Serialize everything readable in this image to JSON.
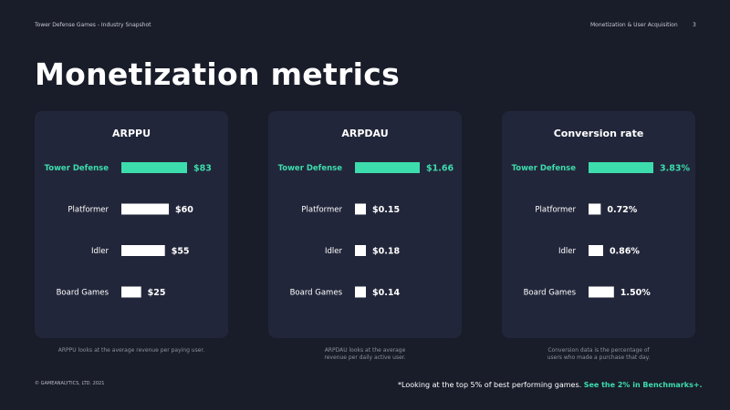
{
  "header": {
    "left": "Tower Defense Games - Industry Snapshot",
    "right": "Monetization & User Acquisition",
    "page": "3"
  },
  "title": "Monetization metrics",
  "colors": {
    "highlight": "#3ddcac",
    "bar": "#ffffff",
    "panel": "#22263a",
    "background": "#191c29"
  },
  "chart_data": [
    {
      "type": "bar",
      "orientation": "horizontal",
      "title": "ARPPU",
      "categories": [
        "Tower Defense",
        "Platformer",
        "Idler",
        "Board Games"
      ],
      "values": [
        83,
        60,
        55,
        25
      ],
      "labels": [
        "$83",
        "$60",
        "$55",
        "$25"
      ],
      "highlight_index": 0,
      "xlim": [
        0,
        83
      ]
    },
    {
      "type": "bar",
      "orientation": "horizontal",
      "title": "ARPDAU",
      "categories": [
        "Tower Defense",
        "Platformer",
        "Idler",
        "Board Games"
      ],
      "values": [
        1.66,
        0.15,
        0.18,
        0.14
      ],
      "labels": [
        "$1.66",
        "$0.15",
        "$0.18",
        "$0.14"
      ],
      "highlight_index": 0,
      "xlim": [
        0,
        1.66
      ]
    },
    {
      "type": "bar",
      "orientation": "horizontal",
      "title": "Conversion rate",
      "categories": [
        "Tower Defense",
        "Platformer",
        "Idler",
        "Board Games"
      ],
      "values": [
        3.83,
        0.72,
        0.86,
        1.5
      ],
      "labels": [
        "3.83%",
        "0.72%",
        "0.86%",
        "1.50%"
      ],
      "highlight_index": 0,
      "xlim": [
        0,
        3.83
      ]
    }
  ],
  "captions": [
    "ARPPU looks at the average revenue per paying user.",
    "ARPDAU looks at the average revenue per daily active user.",
    "Conversion data is the percentage of users who made a purchase that day."
  ],
  "footer": {
    "copyright": "© GAMEANALYTICS, LTD. 2021",
    "note": "*Looking at the top 5% of best performing games. ",
    "link": "See the 2% in Benchmarks+."
  }
}
